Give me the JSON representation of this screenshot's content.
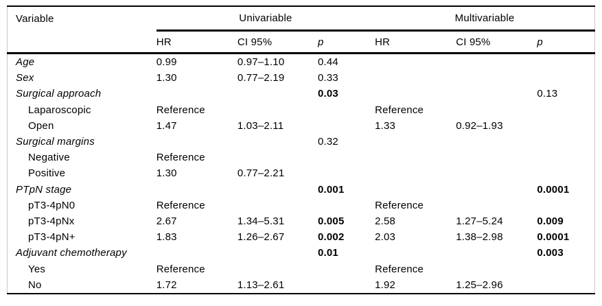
{
  "table": {
    "header": {
      "variable_label": "Variable",
      "spanners": [
        {
          "label": "Univariable"
        },
        {
          "label": "Multivariable"
        }
      ],
      "subcolumns": [
        "HR",
        "CI 95%",
        "p"
      ]
    },
    "rows": [
      {
        "label": "Age",
        "indent": false,
        "italic": true,
        "cells": [
          "0.99",
          "0.97–1.10",
          "0.44",
          "",
          "",
          ""
        ],
        "bold_cells": []
      },
      {
        "label": "Sex",
        "indent": false,
        "italic": true,
        "cells": [
          "1.30",
          "0.77–2.19",
          "0.33",
          "",
          "",
          ""
        ],
        "bold_cells": []
      },
      {
        "label": "Surgical approach",
        "indent": false,
        "italic": true,
        "cells": [
          "",
          "",
          "0.03",
          "",
          "",
          "0.13"
        ],
        "bold_cells": [
          2
        ]
      },
      {
        "label": "Laparoscopic",
        "indent": true,
        "italic": false,
        "cells": [
          "Reference",
          "",
          "",
          "Reference",
          "",
          ""
        ],
        "bold_cells": []
      },
      {
        "label": "Open",
        "indent": true,
        "italic": false,
        "cells": [
          "1.47",
          "1.03–2.11",
          "",
          "1.33",
          "0.92–1.93",
          ""
        ],
        "bold_cells": []
      },
      {
        "label": "Surgical margins",
        "indent": false,
        "italic": true,
        "cells": [
          "",
          "",
          "0.32",
          "",
          "",
          ""
        ],
        "bold_cells": []
      },
      {
        "label": "Negative",
        "indent": true,
        "italic": false,
        "cells": [
          "Reference",
          "",
          "",
          "",
          "",
          ""
        ],
        "bold_cells": []
      },
      {
        "label": "Positive",
        "indent": true,
        "italic": false,
        "cells": [
          "1.30",
          "0.77–2.21",
          "",
          "",
          "",
          ""
        ],
        "bold_cells": []
      },
      {
        "label": "PTpN stage",
        "indent": false,
        "italic": true,
        "cells": [
          "",
          "",
          "0.001",
          "",
          "",
          "0.0001"
        ],
        "bold_cells": [
          2,
          5
        ]
      },
      {
        "label": "pT3-4pN0",
        "indent": true,
        "italic": false,
        "cells": [
          "Reference",
          "",
          "",
          "Reference",
          "",
          ""
        ],
        "bold_cells": []
      },
      {
        "label": "pT3-4pNx",
        "indent": true,
        "italic": false,
        "cells": [
          "2.67",
          "1.34–5.31",
          "0.005",
          "2.58",
          "1.27–5.24",
          "0.009"
        ],
        "bold_cells": [
          2,
          5
        ]
      },
      {
        "label": "pT3-4pN+",
        "indent": true,
        "italic": false,
        "cells": [
          "1.83",
          "1.26–2.67",
          "0.002",
          "2.03",
          "1.38–2.98",
          "0.0001"
        ],
        "bold_cells": [
          2,
          5
        ]
      },
      {
        "label": "Adjuvant chemotherapy",
        "indent": false,
        "italic": true,
        "cells": [
          "",
          "",
          "0.01",
          "",
          "",
          "0.003"
        ],
        "bold_cells": [
          2,
          5
        ]
      },
      {
        "label": "Yes",
        "indent": true,
        "italic": false,
        "cells": [
          "Reference",
          "",
          "",
          "Reference",
          "",
          ""
        ],
        "bold_cells": []
      },
      {
        "label": "No",
        "indent": true,
        "italic": false,
        "cells": [
          "1.72",
          "1.13–2.61",
          "",
          "1.92",
          "1.25–2.96",
          ""
        ],
        "bold_cells": []
      }
    ]
  }
}
